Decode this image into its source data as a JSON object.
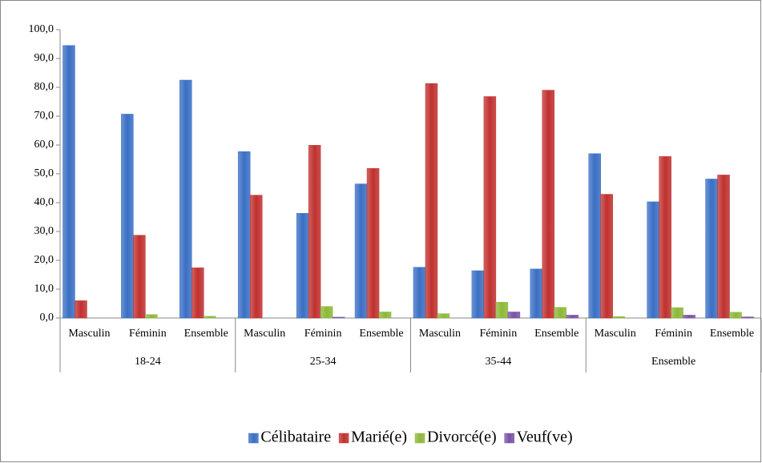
{
  "chart_data": {
    "type": "bar",
    "categories": [
      "Masculin",
      "Féminin",
      "Ensemble",
      "Masculin",
      "Féminin",
      "Ensemble",
      "Masculin",
      "Féminin",
      "Ensemble",
      "Masculin",
      "Féminin",
      "Ensemble"
    ],
    "groups": [
      "18-24",
      "25-34",
      "35-44",
      "Ensemble"
    ],
    "series": [
      {
        "name": "Célibataire",
        "color": "#3a6fc4",
        "values": [
          94.5,
          70.7,
          82.5,
          57.7,
          36.3,
          46.5,
          17.6,
          16.4,
          17.0,
          57.0,
          40.3,
          48.2
        ]
      },
      {
        "name": "Marié(e)",
        "color": "#c0312f",
        "values": [
          6.0,
          28.7,
          17.4,
          42.6,
          59.9,
          51.9,
          81.3,
          76.8,
          79.0,
          42.9,
          56.0,
          49.6
        ]
      },
      {
        "name": "Divorcé(e)",
        "color": "#8db83a",
        "values": [
          0.0,
          1.2,
          0.6,
          0.0,
          4.0,
          2.1,
          1.5,
          5.5,
          3.7,
          0.5,
          3.6,
          2.0
        ]
      },
      {
        "name": "Veuf(ve)",
        "color": "#7a52a6",
        "values": [
          0.0,
          0.0,
          0.0,
          0.0,
          0.3,
          0.0,
          0.0,
          2.1,
          1.0,
          0.0,
          1.0,
          0.4
        ]
      }
    ],
    "ylim": [
      0,
      100
    ],
    "yticks": [
      {
        "value": 0,
        "label": "0,0"
      },
      {
        "value": 10,
        "label": "10,0"
      },
      {
        "value": 20,
        "label": "20,0"
      },
      {
        "value": 30,
        "label": "30,0"
      },
      {
        "value": 40,
        "label": "40,0"
      },
      {
        "value": 50,
        "label": "50,0"
      },
      {
        "value": 60,
        "label": "60,0"
      },
      {
        "value": 70,
        "label": "70,0"
      },
      {
        "value": 80,
        "label": "80,0"
      },
      {
        "value": 90,
        "label": "90,0"
      },
      {
        "value": 100,
        "label": "100,0"
      }
    ],
    "legend": "bottom"
  }
}
